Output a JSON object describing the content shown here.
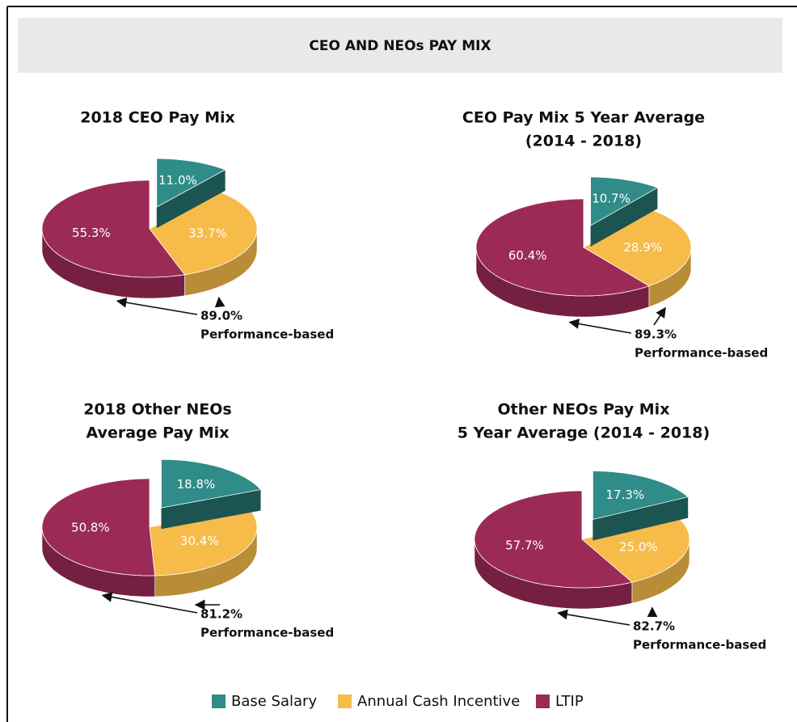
{
  "title": "CEO AND NEOs PAY MIX",
  "chart_data": [
    {
      "type": "pie",
      "title": [
        "2018 CEO Pay Mix"
      ],
      "categories": [
        "Base Salary",
        "Annual Cash Incentive",
        "LTIP"
      ],
      "values": [
        11.0,
        33.7,
        55.3
      ],
      "value_labels": [
        "11.0%",
        "33.7%",
        "55.3%"
      ],
      "colors": [
        "#2f8c88",
        "#f6bb49",
        "#9c2a56"
      ],
      "exploded": 0,
      "annotation": {
        "value": 89.0,
        "label": "89.0%",
        "text": "Performance-based"
      }
    },
    {
      "type": "pie",
      "title": [
        "CEO Pay Mix 5 Year Average",
        "(2014 - 2018)"
      ],
      "categories": [
        "Base Salary",
        "Annual Cash Incentive",
        "LTIP"
      ],
      "values": [
        10.7,
        28.9,
        60.4
      ],
      "value_labels": [
        "10.7%",
        "28.9%",
        "60.4%"
      ],
      "colors": [
        "#2f8c88",
        "#f6bb49",
        "#9c2a56"
      ],
      "exploded": 0,
      "annotation": {
        "value": 89.3,
        "label": "89.3%",
        "text": "Performance-based"
      }
    },
    {
      "type": "pie",
      "title": [
        "2018 Other NEOs",
        "Average Pay Mix"
      ],
      "categories": [
        "Base Salary",
        "Annual Cash Incentive",
        "LTIP"
      ],
      "values": [
        18.8,
        30.4,
        50.8
      ],
      "value_labels": [
        "18.8%",
        "30.4%",
        "50.8%"
      ],
      "colors": [
        "#2f8c88",
        "#f6bb49",
        "#9c2a56"
      ],
      "exploded": 0,
      "annotation": {
        "value": 81.2,
        "label": "81.2%",
        "text": "Performance-based"
      }
    },
    {
      "type": "pie",
      "title": [
        "Other NEOs Pay Mix",
        "5 Year Average (2014 - 2018)"
      ],
      "categories": [
        "Base Salary",
        "Annual Cash Incentive",
        "LTIP"
      ],
      "values": [
        17.3,
        25.0,
        57.7
      ],
      "value_labels": [
        "17.3%",
        "25.0%",
        "57.7%"
      ],
      "colors": [
        "#2f8c88",
        "#f6bb49",
        "#9c2a56"
      ],
      "exploded": 0,
      "annotation": {
        "value": 82.7,
        "label": "82.7%",
        "text": "Performance-based"
      }
    }
  ]
}
